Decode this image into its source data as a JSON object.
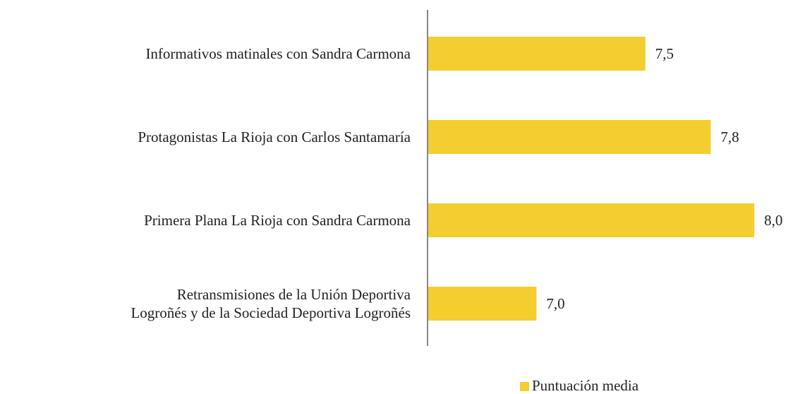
{
  "chart_data": {
    "type": "bar",
    "orientation": "horizontal",
    "categories": [
      "Informativos matinales con Sandra Carmona",
      "Protagonistas La Rioja con Carlos Santamaría",
      "Primera Plana La Rioja con Sandra Carmona",
      "Retransmisiones de la Unión Deportiva\nLogroñés y de la Sociedad Deportiva Logroñés"
    ],
    "series": [
      {
        "name": "Puntuación media",
        "color": "#f4cd2f",
        "values": [
          7.5,
          7.8,
          8.0,
          7.0
        ],
        "value_labels": [
          "7,5",
          "7,8",
          "8,0",
          "7,0"
        ]
      }
    ],
    "xlim": [
      6.5,
      8.1
    ],
    "legend": "bottom"
  }
}
